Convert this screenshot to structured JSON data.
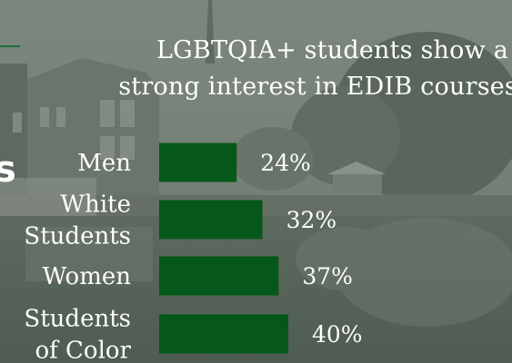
{
  "title_line1": "LGBTQIA+ students show a",
  "title_line2": "strong interest in EDIB courses",
  "edge_fragment": "s",
  "colors": {
    "bar": "#055819",
    "text": "#ffffff",
    "background": "#6d7a6f"
  },
  "chart_data": {
    "type": "bar",
    "orientation": "horizontal",
    "title": "LGBTQIA+ students show a strong interest in EDIB courses",
    "categories": [
      [
        "Men"
      ],
      [
        "White",
        "Students"
      ],
      [
        "Women"
      ],
      [
        "Students",
        "of Color"
      ]
    ],
    "values": [
      24,
      32,
      37,
      40
    ],
    "value_labels": [
      "24%",
      "32%",
      "37%",
      "40%"
    ],
    "xlim": [
      0,
      100
    ],
    "grid": false,
    "legend": "none"
  }
}
